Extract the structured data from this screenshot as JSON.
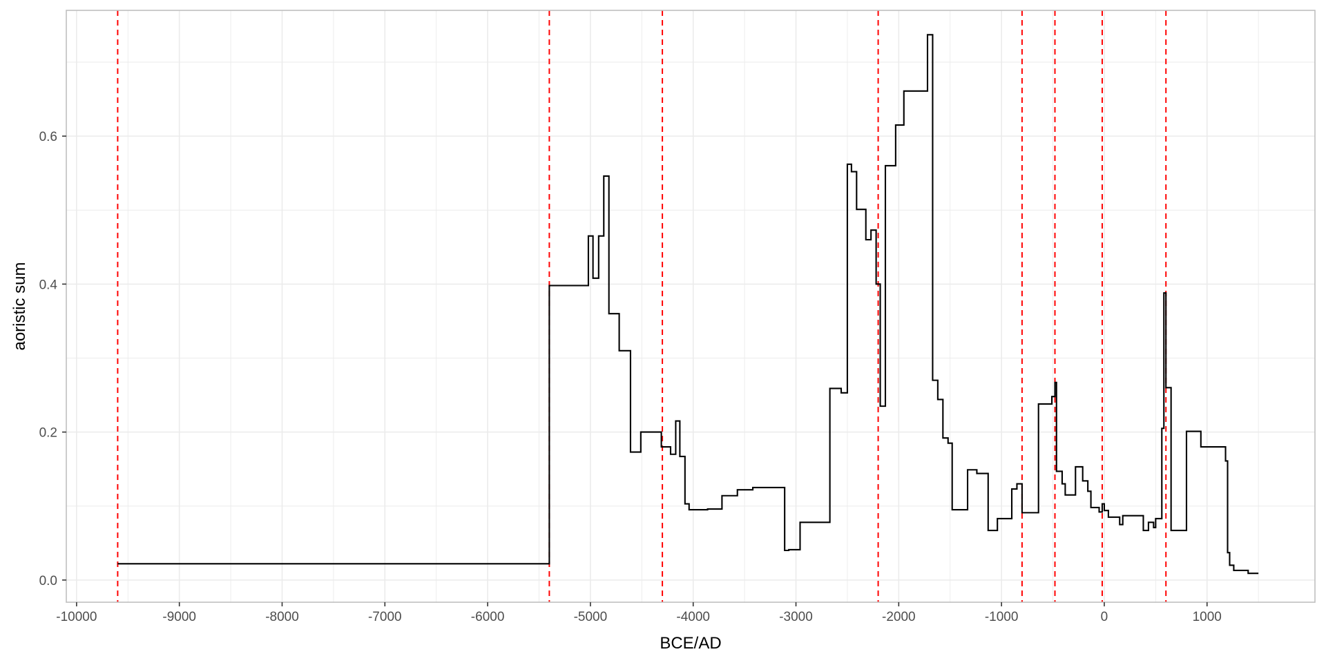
{
  "chart_data": {
    "type": "line",
    "title": "",
    "xlabel": "BCE/AD",
    "ylabel": "aoristic sum",
    "xlim": [
      -10100,
      2050
    ],
    "ylim": [
      -0.03,
      0.77
    ],
    "x_ticks": [
      -10000,
      -9000,
      -8000,
      -7000,
      -6000,
      -5000,
      -4000,
      -3000,
      -2000,
      -1000,
      0,
      1000
    ],
    "x_tick_labels": [
      "-10000",
      "-9000",
      "-8000",
      "-7000",
      "-6000",
      "-5000",
      "-4000",
      "-3000",
      "-2000",
      "-1000",
      "0",
      "1000"
    ],
    "y_ticks": [
      0.0,
      0.2,
      0.4,
      0.6
    ],
    "y_tick_labels": [
      "0.0",
      "0.2",
      "0.4",
      "0.6"
    ],
    "grid": true,
    "legend": "none",
    "colors": {
      "line": "#000000",
      "vlines": "#ff0000",
      "grid": "#ebebeb",
      "panel_border": "#bfbfbf"
    },
    "vlines": [
      -9600,
      -5400,
      -4300,
      -2200,
      -800,
      -480,
      -20,
      600
    ],
    "series": [
      {
        "line_style": "step",
        "points": [
          [
            -9600,
            0.022
          ],
          [
            -5400,
            0.022
          ],
          [
            -5400,
            0.398
          ],
          [
            -5020,
            0.398
          ],
          [
            -5020,
            0.465
          ],
          [
            -4975,
            0.465
          ],
          [
            -4975,
            0.408
          ],
          [
            -4920,
            0.408
          ],
          [
            -4920,
            0.465
          ],
          [
            -4870,
            0.465
          ],
          [
            -4870,
            0.546
          ],
          [
            -4820,
            0.546
          ],
          [
            -4820,
            0.36
          ],
          [
            -4720,
            0.36
          ],
          [
            -4720,
            0.31
          ],
          [
            -4610,
            0.31
          ],
          [
            -4610,
            0.173
          ],
          [
            -4510,
            0.173
          ],
          [
            -4510,
            0.2
          ],
          [
            -4310,
            0.2
          ],
          [
            -4310,
            0.18
          ],
          [
            -4220,
            0.18
          ],
          [
            -4220,
            0.17
          ],
          [
            -4170,
            0.17
          ],
          [
            -4170,
            0.215
          ],
          [
            -4130,
            0.215
          ],
          [
            -4130,
            0.167
          ],
          [
            -4080,
            0.167
          ],
          [
            -4080,
            0.103
          ],
          [
            -4040,
            0.103
          ],
          [
            -4040,
            0.095
          ],
          [
            -3860,
            0.095
          ],
          [
            -3860,
            0.096
          ],
          [
            -3720,
            0.096
          ],
          [
            -3720,
            0.114
          ],
          [
            -3570,
            0.114
          ],
          [
            -3570,
            0.122
          ],
          [
            -3420,
            0.122
          ],
          [
            -3420,
            0.125
          ],
          [
            -3110,
            0.125
          ],
          [
            -3110,
            0.04
          ],
          [
            -3070,
            0.04
          ],
          [
            -3070,
            0.041
          ],
          [
            -2960,
            0.041
          ],
          [
            -2960,
            0.078
          ],
          [
            -2670,
            0.078
          ],
          [
            -2670,
            0.259
          ],
          [
            -2560,
            0.259
          ],
          [
            -2560,
            0.253
          ],
          [
            -2500,
            0.253
          ],
          [
            -2500,
            0.562
          ],
          [
            -2460,
            0.562
          ],
          [
            -2460,
            0.552
          ],
          [
            -2410,
            0.552
          ],
          [
            -2410,
            0.501
          ],
          [
            -2320,
            0.501
          ],
          [
            -2320,
            0.46
          ],
          [
            -2270,
            0.46
          ],
          [
            -2270,
            0.473
          ],
          [
            -2220,
            0.473
          ],
          [
            -2220,
            0.4
          ],
          [
            -2180,
            0.4
          ],
          [
            -2180,
            0.235
          ],
          [
            -2130,
            0.235
          ],
          [
            -2130,
            0.56
          ],
          [
            -2030,
            0.56
          ],
          [
            -2030,
            0.615
          ],
          [
            -1950,
            0.615
          ],
          [
            -1950,
            0.661
          ],
          [
            -1720,
            0.661
          ],
          [
            -1720,
            0.737
          ],
          [
            -1670,
            0.737
          ],
          [
            -1670,
            0.27
          ],
          [
            -1620,
            0.27
          ],
          [
            -1620,
            0.244
          ],
          [
            -1570,
            0.244
          ],
          [
            -1570,
            0.192
          ],
          [
            -1520,
            0.192
          ],
          [
            -1520,
            0.185
          ],
          [
            -1480,
            0.185
          ],
          [
            -1480,
            0.095
          ],
          [
            -1330,
            0.095
          ],
          [
            -1330,
            0.149
          ],
          [
            -1240,
            0.149
          ],
          [
            -1240,
            0.144
          ],
          [
            -1130,
            0.144
          ],
          [
            -1130,
            0.067
          ],
          [
            -1040,
            0.067
          ],
          [
            -1040,
            0.083
          ],
          [
            -900,
            0.083
          ],
          [
            -900,
            0.123
          ],
          [
            -850,
            0.123
          ],
          [
            -850,
            0.13
          ],
          [
            -800,
            0.13
          ],
          [
            -800,
            0.091
          ],
          [
            -640,
            0.091
          ],
          [
            -640,
            0.238
          ],
          [
            -510,
            0.238
          ],
          [
            -510,
            0.248
          ],
          [
            -480,
            0.248
          ],
          [
            -480,
            0.267
          ],
          [
            -465,
            0.267
          ],
          [
            -465,
            0.147
          ],
          [
            -410,
            0.147
          ],
          [
            -410,
            0.13
          ],
          [
            -380,
            0.13
          ],
          [
            -380,
            0.115
          ],
          [
            -280,
            0.115
          ],
          [
            -280,
            0.153
          ],
          [
            -210,
            0.153
          ],
          [
            -210,
            0.134
          ],
          [
            -160,
            0.134
          ],
          [
            -160,
            0.12
          ],
          [
            -130,
            0.12
          ],
          [
            -130,
            0.098
          ],
          [
            -50,
            0.098
          ],
          [
            -50,
            0.092
          ],
          [
            -20,
            0.092
          ],
          [
            -20,
            0.103
          ],
          [
            0,
            0.103
          ],
          [
            0,
            0.094
          ],
          [
            40,
            0.094
          ],
          [
            40,
            0.085
          ],
          [
            150,
            0.085
          ],
          [
            150,
            0.075
          ],
          [
            180,
            0.075
          ],
          [
            180,
            0.087
          ],
          [
            380,
            0.087
          ],
          [
            380,
            0.067
          ],
          [
            430,
            0.067
          ],
          [
            430,
            0.078
          ],
          [
            480,
            0.078
          ],
          [
            480,
            0.071
          ],
          [
            500,
            0.071
          ],
          [
            500,
            0.083
          ],
          [
            560,
            0.083
          ],
          [
            560,
            0.205
          ],
          [
            580,
            0.205
          ],
          [
            580,
            0.388
          ],
          [
            600,
            0.388
          ],
          [
            600,
            0.26
          ],
          [
            650,
            0.26
          ],
          [
            650,
            0.067
          ],
          [
            800,
            0.067
          ],
          [
            800,
            0.201
          ],
          [
            940,
            0.201
          ],
          [
            940,
            0.18
          ],
          [
            1180,
            0.18
          ],
          [
            1180,
            0.161
          ],
          [
            1200,
            0.161
          ],
          [
            1200,
            0.037
          ],
          [
            1220,
            0.037
          ],
          [
            1220,
            0.02
          ],
          [
            1260,
            0.02
          ],
          [
            1260,
            0.013
          ],
          [
            1400,
            0.013
          ],
          [
            1400,
            0.009
          ],
          [
            1500,
            0.009
          ]
        ]
      }
    ]
  }
}
